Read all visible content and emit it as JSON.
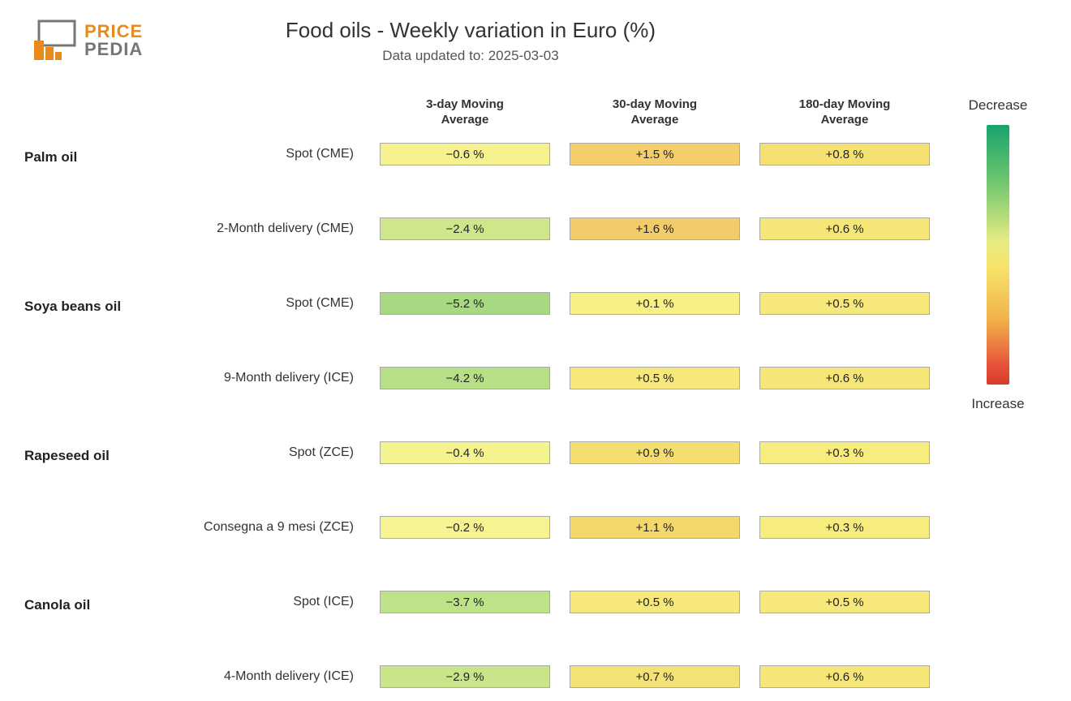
{
  "logo": {
    "brand1": "PRICE",
    "brand2": "PEDIA"
  },
  "title": "Food oils - Weekly variation in Euro (%)",
  "subtitle": "Data updated to: 2025-03-03",
  "columns": [
    "3-day Moving Average",
    "30-day Moving Average",
    "180-day Moving Average"
  ],
  "legend": {
    "top": "Decrease",
    "bottom": "Increase"
  },
  "color_scale": {
    "type": "diverging",
    "decrease_end": "#18a36a",
    "neutral": "#f7f07a",
    "increase_end": "#d83b2b",
    "stops": [
      "#18a36a",
      "#6fc66f",
      "#e8ec82",
      "#f7e36a",
      "#f2b24a",
      "#e7553a",
      "#d83b2b"
    ]
  },
  "categories": [
    {
      "name": "Palm oil",
      "rows": [
        {
          "label": "Spot (CME)",
          "cells": [
            {
              "text": "−0.6 %",
              "bg": "#f4f18e"
            },
            {
              "text": "+1.5 %",
              "bg": "#f3ce6a"
            },
            {
              "text": "+0.8 %",
              "bg": "#f5e072"
            }
          ]
        },
        {
          "label": "2-Month delivery (CME)",
          "cells": [
            {
              "text": "−2.4 %",
              "bg": "#cfe78a"
            },
            {
              "text": "+1.6 %",
              "bg": "#f2cc68"
            },
            {
              "text": "+0.6 %",
              "bg": "#f6e678"
            }
          ]
        }
      ]
    },
    {
      "name": "Soya beans oil",
      "rows": [
        {
          "label": "Spot (CME)",
          "cells": [
            {
              "text": "−5.2 %",
              "bg": "#a7d982"
            },
            {
              "text": "+0.1 %",
              "bg": "#f8f082"
            },
            {
              "text": "+0.5 %",
              "bg": "#f6e87a"
            }
          ]
        },
        {
          "label": "9-Month delivery (ICE)",
          "cells": [
            {
              "text": "−4.2 %",
              "bg": "#b6df86"
            },
            {
              "text": "+0.5 %",
              "bg": "#f6e87a"
            },
            {
              "text": "+0.6 %",
              "bg": "#f6e678"
            }
          ]
        }
      ]
    },
    {
      "name": "Rapeseed oil",
      "rows": [
        {
          "label": "Spot (ZCE)",
          "cells": [
            {
              "text": "−0.4 %",
              "bg": "#f5f290"
            },
            {
              "text": "+0.9 %",
              "bg": "#f5de70"
            },
            {
              "text": "+0.3 %",
              "bg": "#f7ec7e"
            }
          ]
        },
        {
          "label": "Consegna a 9 mesi (ZCE)",
          "cells": [
            {
              "text": "−0.2 %",
              "bg": "#f6f392"
            },
            {
              "text": "+1.1 %",
              "bg": "#f4d86c"
            },
            {
              "text": "+0.3 %",
              "bg": "#f7ec7e"
            }
          ]
        }
      ]
    },
    {
      "name": "Canola oil",
      "rows": [
        {
          "label": "Spot (ICE)",
          "cells": [
            {
              "text": "−3.7 %",
              "bg": "#bee288"
            },
            {
              "text": "+0.5 %",
              "bg": "#f6e87a"
            },
            {
              "text": "+0.5 %",
              "bg": "#f6e87a"
            }
          ]
        },
        {
          "label": "4-Month delivery (ICE)",
          "cells": [
            {
              "text": "−2.9 %",
              "bg": "#c9e58a"
            },
            {
              "text": "+0.7 %",
              "bg": "#f5e276"
            },
            {
              "text": "+0.6 %",
              "bg": "#f6e678"
            }
          ]
        }
      ]
    }
  ]
}
